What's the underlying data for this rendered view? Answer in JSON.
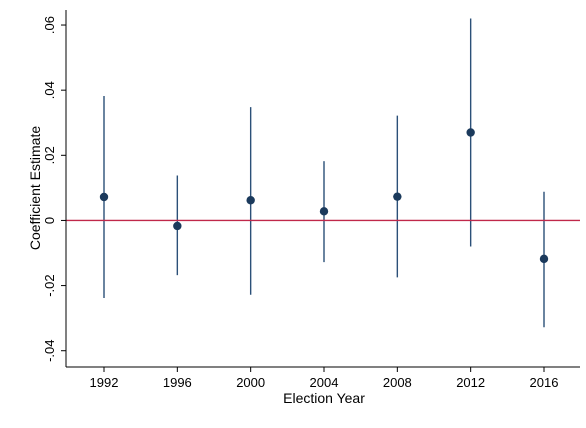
{
  "chart_data": {
    "type": "scatter",
    "subtype": "coefficient-plot-with-confidence-intervals",
    "title": "",
    "xlabel": "Election Year",
    "ylabel": "Coefficient Estimate",
    "x_ticks": [
      "1992",
      "1996",
      "2000",
      "2004",
      "2008",
      "2012",
      "2016"
    ],
    "y_ticks": [
      {
        "value": -0.04,
        "label": "-.04"
      },
      {
        "value": -0.02,
        "label": "-.02"
      },
      {
        "value": 0,
        "label": "0"
      },
      {
        "value": 0.02,
        "label": ".02"
      },
      {
        "value": 0.04,
        "label": ".04"
      },
      {
        "value": 0.06,
        "label": ".06"
      }
    ],
    "ylim": [
      -0.045,
      0.064
    ],
    "points": [
      {
        "x": "1992",
        "estimate": 0.0072,
        "ci_low": -0.0238,
        "ci_high": 0.0382
      },
      {
        "x": "1996",
        "estimate": -0.0017,
        "ci_low": -0.0168,
        "ci_high": 0.0138
      },
      {
        "x": "2000",
        "estimate": 0.0062,
        "ci_low": -0.0228,
        "ci_high": 0.0348
      },
      {
        "x": "2004",
        "estimate": 0.0028,
        "ci_low": -0.0128,
        "ci_high": 0.0182
      },
      {
        "x": "2008",
        "estimate": 0.0073,
        "ci_low": -0.0175,
        "ci_high": 0.0322
      },
      {
        "x": "2012",
        "estimate": 0.027,
        "ci_low": -0.008,
        "ci_high": 0.062
      },
      {
        "x": "2016",
        "estimate": -0.0118,
        "ci_low": -0.0328,
        "ci_high": 0.0088
      }
    ],
    "reference_line": {
      "y": 0,
      "color": "#c0284a"
    },
    "colors": {
      "point": "#1b3a5c",
      "ci_line": "#2b5078",
      "axis": "#000000",
      "background": "#ffffff"
    },
    "grid": false,
    "legend": "none"
  }
}
